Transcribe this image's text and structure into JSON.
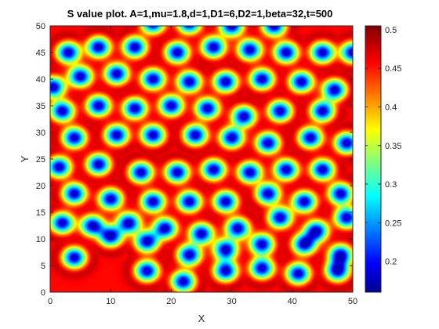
{
  "chart_data": {
    "type": "heatmap",
    "title": "S value plot. A=1,mu=1.8,d=1,D1=6,D2=1,beta=32,t=500",
    "xlabel": "X",
    "ylabel": "Y",
    "xlim": [
      0,
      50
    ],
    "ylim": [
      0,
      50
    ],
    "xticks": [
      "0",
      "10",
      "20",
      "30",
      "40",
      "50"
    ],
    "yticks": [
      "0",
      "5",
      "10",
      "15",
      "20",
      "25",
      "30",
      "35",
      "40",
      "45",
      "50"
    ],
    "colorbar": {
      "colormap": "jet",
      "range": [
        0.16,
        0.505
      ],
      "ticks": [
        "0.2",
        "0.25",
        "0.3",
        "0.35",
        "0.4",
        "0.45",
        "0.5"
      ]
    },
    "background_value": 0.46,
    "spot_minimum_value": 0.18,
    "spots": [
      [
        16,
        4
      ],
      [
        22,
        2
      ],
      [
        29,
        4
      ],
      [
        35,
        4.5
      ],
      [
        41,
        3.5
      ],
      [
        47.5,
        4
      ],
      [
        4,
        6.5
      ],
      [
        10,
        10.5
      ],
      [
        16,
        9.5
      ],
      [
        23,
        7
      ],
      [
        29,
        8
      ],
      [
        35,
        9
      ],
      [
        42,
        9
      ],
      [
        48,
        7
      ],
      [
        2,
        13
      ],
      [
        7,
        12.5
      ],
      [
        13,
        13
      ],
      [
        19,
        12
      ],
      [
        25,
        11
      ],
      [
        31,
        12
      ],
      [
        38,
        14
      ],
      [
        44,
        11.5
      ],
      [
        49,
        14
      ],
      [
        4,
        18.5
      ],
      [
        10,
        17.5
      ],
      [
        17,
        17
      ],
      [
        23,
        17
      ],
      [
        29,
        17
      ],
      [
        36,
        18.5
      ],
      [
        42,
        17
      ],
      [
        48,
        18.5
      ],
      [
        1.5,
        23.5
      ],
      [
        8,
        24
      ],
      [
        15,
        22.5
      ],
      [
        21,
        22.5
      ],
      [
        27,
        23
      ],
      [
        33,
        22.5
      ],
      [
        39,
        23
      ],
      [
        45,
        23
      ],
      [
        4,
        29
      ],
      [
        11,
        29.5
      ],
      [
        17,
        29.5
      ],
      [
        24,
        29.5
      ],
      [
        30,
        29
      ],
      [
        36,
        28
      ],
      [
        43,
        29
      ],
      [
        49,
        28
      ],
      [
        2,
        34
      ],
      [
        8,
        35
      ],
      [
        14,
        34.5
      ],
      [
        20,
        35
      ],
      [
        26,
        34.5
      ],
      [
        32,
        33
      ],
      [
        38,
        34
      ],
      [
        45,
        34
      ],
      [
        0.5,
        38.5
      ],
      [
        5,
        40.5
      ],
      [
        11,
        41
      ],
      [
        17,
        40
      ],
      [
        23,
        39.5
      ],
      [
        29,
        39.5
      ],
      [
        35,
        40
      ],
      [
        41.5,
        39.5
      ],
      [
        47,
        38
      ],
      [
        3,
        45
      ],
      [
        8,
        46
      ],
      [
        14,
        46
      ],
      [
        21,
        45
      ],
      [
        27,
        46
      ],
      [
        33,
        45.5
      ],
      [
        39,
        45
      ],
      [
        45,
        45
      ],
      [
        50,
        45
      ],
      [
        17,
        50.5
      ],
      [
        23,
        50.5
      ],
      [
        30,
        50
      ],
      [
        37,
        50
      ]
    ]
  }
}
